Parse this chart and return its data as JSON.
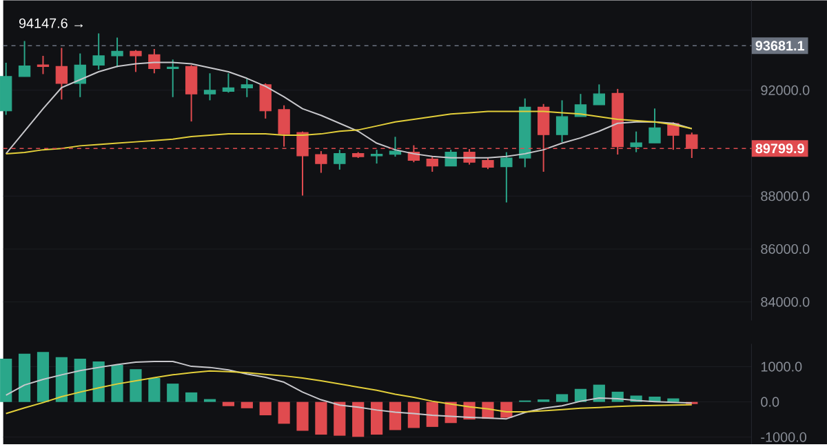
{
  "chart_data": [
    {
      "type": "candlestick",
      "categories": [
        null,
        null,
        null,
        null,
        null,
        null,
        null,
        null,
        null,
        null,
        null,
        null,
        null,
        null,
        null,
        null,
        null,
        null,
        null,
        null,
        null,
        null,
        null,
        null,
        null,
        null,
        null,
        null,
        null,
        null,
        null,
        null,
        null,
        null,
        null,
        null,
        null,
        null
      ],
      "ohlc": [
        [
          91220,
          93040,
          91070,
          92520
        ],
        [
          92520,
          93860,
          92520,
          92920
        ],
        [
          92960,
          93300,
          92610,
          92900
        ],
        [
          92900,
          93600,
          91650,
          92260
        ],
        [
          92260,
          93390,
          91740,
          92950
        ],
        [
          92950,
          94147.6,
          92780,
          93300
        ],
        [
          93300,
          93990,
          92870,
          93470
        ],
        [
          93470,
          93520,
          92690,
          93300
        ],
        [
          93340,
          93560,
          92640,
          92820
        ],
        [
          92820,
          93160,
          91740,
          92870
        ],
        [
          92900,
          92950,
          90820,
          91860
        ],
        [
          91860,
          92640,
          91620,
          92000
        ],
        [
          91960,
          92640,
          91910,
          92090
        ],
        [
          92090,
          92430,
          91740,
          92210
        ],
        [
          92210,
          92260,
          90930,
          91220
        ],
        [
          91270,
          91430,
          89870,
          90350
        ],
        [
          90400,
          90440,
          88020,
          89520
        ],
        [
          89570,
          89700,
          88880,
          89230
        ],
        [
          89230,
          89750,
          89000,
          89610
        ],
        [
          89610,
          89660,
          89440,
          89490
        ],
        [
          89520,
          89750,
          89230,
          89580
        ],
        [
          89580,
          90240,
          89490,
          89700
        ],
        [
          89660,
          89920,
          89280,
          89350
        ],
        [
          89400,
          89520,
          88920,
          89140
        ],
        [
          89140,
          89750,
          89140,
          89660
        ],
        [
          89660,
          89780,
          89190,
          89280
        ],
        [
          89350,
          89440,
          89020,
          89090
        ],
        [
          89110,
          89660,
          87760,
          89440
        ],
        [
          89440,
          91690,
          89090,
          91360
        ],
        [
          91360,
          91480,
          88920,
          90320
        ],
        [
          90320,
          91620,
          90040,
          91000
        ],
        [
          91010,
          91860,
          91010,
          91450
        ],
        [
          91450,
          92220,
          91450,
          91860
        ],
        [
          91880,
          92050,
          89570,
          89870
        ],
        [
          89870,
          90440,
          89660,
          90010
        ],
        [
          90010,
          91310,
          90010,
          90580
        ],
        [
          90740,
          90790,
          89750,
          90300
        ],
        [
          90320,
          90400,
          89440,
          89799.9
        ]
      ],
      "colors": [
        "#2aa78a",
        "#2aa78a",
        "#e04b4f",
        "#e04b4f",
        "#2aa78a",
        "#2aa78a",
        "#2aa78a",
        "#e04b4f",
        "#e04b4f",
        "#2aa78a",
        "#e04b4f",
        "#2aa78a",
        "#2aa78a",
        "#2aa78a",
        "#e04b4f",
        "#e04b4f",
        "#e04b4f",
        "#e04b4f",
        "#2aa78a",
        "#e04b4f",
        "#2aa78a",
        "#2aa78a",
        "#e04b4f",
        "#e04b4f",
        "#2aa78a",
        "#e04b4f",
        "#e04b4f",
        "#2aa78a",
        "#2aa78a",
        "#e04b4f",
        "#2aa78a",
        "#2aa78a",
        "#2aa78a",
        "#e04b4f",
        "#2aa78a",
        "#2aa78a",
        "#e04b4f",
        "#e04b4f"
      ],
      "series": [
        {
          "type": "line",
          "color": "#c8c8cc",
          "values": [
            89600,
            90450,
            91300,
            92100,
            92400,
            92700,
            92900,
            93000,
            93050,
            93050,
            93000,
            92850,
            92700,
            92450,
            92150,
            91750,
            91300,
            91050,
            90750,
            90450,
            90000,
            89750,
            89600,
            89500,
            89450,
            89450,
            89450,
            89500,
            89600,
            89750,
            90000,
            90200,
            90450,
            90750,
            90800,
            90800,
            90750,
            90550
          ]
        },
        {
          "type": "line",
          "color": "#e3cf3a",
          "values": [
            89600,
            89650,
            89750,
            89800,
            89900,
            89950,
            90000,
            90050,
            90100,
            90150,
            90250,
            90300,
            90350,
            90350,
            90350,
            90300,
            90300,
            90350,
            90450,
            90500,
            90650,
            90800,
            90900,
            91000,
            91100,
            91150,
            91200,
            91200,
            91200,
            91200,
            91150,
            91100,
            91000,
            90900,
            90850,
            90800,
            90700,
            90550
          ]
        }
      ],
      "ylim": [
        83300,
        95400
      ],
      "yticks": [
        {
          "value": 84000,
          "label": "84000.0"
        },
        {
          "value": 86000,
          "label": "86000.0"
        },
        {
          "value": 88000,
          "label": "88000.0"
        },
        {
          "value": 92000,
          "label": "92000.0"
        }
      ],
      "ref_lines": [
        {
          "axis": "y",
          "value": 93681.1,
          "label": "93681.1",
          "color": "#6b7380",
          "line_style": "dashed"
        },
        {
          "axis": "y",
          "value": 89799.9,
          "label": "89799.9",
          "color": "#e04b4f",
          "line_style": "dashed"
        }
      ],
      "annotations": [
        "94147.6 →"
      ],
      "grid": "y",
      "tick_labels": "y"
    },
    {
      "type": "bar",
      "categories": [
        null,
        null,
        null,
        null,
        null,
        null,
        null,
        null,
        null,
        null,
        null,
        null,
        null,
        null,
        null,
        null,
        null,
        null,
        null,
        null,
        null,
        null,
        null,
        null,
        null,
        null,
        null,
        null,
        null,
        null,
        null,
        null,
        null,
        null,
        null,
        null,
        null,
        null
      ],
      "series": [
        {
          "type": "bar",
          "values": [
            1230,
            1370,
            1420,
            1270,
            1230,
            1150,
            1050,
            930,
            680,
            520,
            270,
            80,
            -120,
            -180,
            -380,
            -620,
            -820,
            -930,
            -960,
            -990,
            -930,
            -800,
            -740,
            -710,
            -600,
            -500,
            -480,
            -450,
            40,
            70,
            220,
            370,
            490,
            290,
            180,
            150,
            100,
            -60
          ],
          "colors": [
            "#2aa78a",
            "#2aa78a",
            "#2aa78a",
            "#2aa78a",
            "#2aa78a",
            "#2aa78a",
            "#2aa78a",
            "#2aa78a",
            "#2aa78a",
            "#2aa78a",
            "#2aa78a",
            "#2aa78a",
            "#e04b4f",
            "#e04b4f",
            "#e04b4f",
            "#e04b4f",
            "#e04b4f",
            "#e04b4f",
            "#e04b4f",
            "#e04b4f",
            "#e04b4f",
            "#e04b4f",
            "#e04b4f",
            "#e04b4f",
            "#e04b4f",
            "#e04b4f",
            "#e04b4f",
            "#e04b4f",
            "#2aa78a",
            "#2aa78a",
            "#2aa78a",
            "#2aa78a",
            "#2aa78a",
            "#2aa78a",
            "#2aa78a",
            "#2aa78a",
            "#2aa78a",
            "#e04b4f"
          ]
        },
        {
          "type": "line",
          "color": "#c8c8cc",
          "values": [
            190,
            480,
            640,
            770,
            890,
            980,
            1060,
            1130,
            1150,
            1150,
            1010,
            980,
            910,
            790,
            700,
            560,
            280,
            60,
            -90,
            -150,
            -230,
            -290,
            -330,
            -380,
            -410,
            -440,
            -460,
            -480,
            -300,
            -180,
            -110,
            20,
            110,
            90,
            40,
            10,
            -10,
            -30
          ]
        },
        {
          "type": "line",
          "color": "#e3cf3a",
          "values": [
            -330,
            -170,
            -20,
            150,
            280,
            400,
            510,
            600,
            690,
            770,
            830,
            880,
            860,
            830,
            780,
            740,
            680,
            600,
            510,
            420,
            330,
            220,
            130,
            20,
            -60,
            -140,
            -200,
            -280,
            -280,
            -250,
            -220,
            -180,
            -160,
            -130,
            -110,
            -100,
            -90,
            -80
          ]
        }
      ],
      "ylim": [
        -1200,
        1650
      ],
      "yticks": [
        {
          "value": 1000,
          "label": "1000.0"
        },
        {
          "value": 0,
          "label": "0.0"
        },
        {
          "value": -1000,
          "label": "-1000.0"
        }
      ],
      "grid": "y",
      "tick_labels": "y"
    }
  ]
}
